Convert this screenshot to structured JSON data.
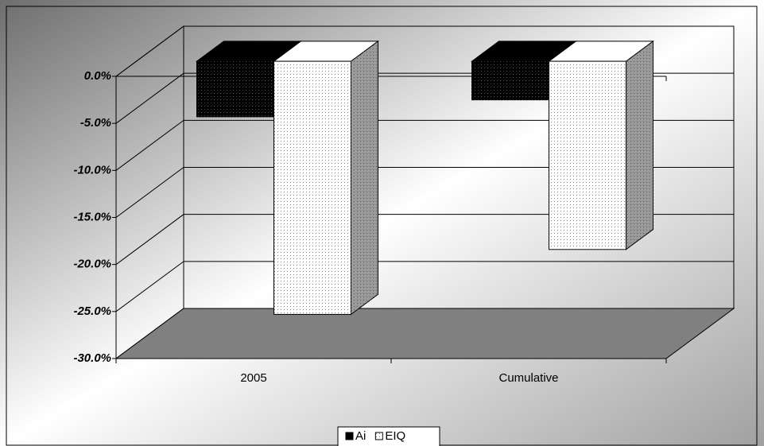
{
  "chart_data": {
    "type": "bar3d",
    "categories": [
      "2005",
      "Cumulative"
    ],
    "series": [
      {
        "name": "Ai",
        "color": "#000000",
        "values": [
          -5.9,
          -4.1
        ]
      },
      {
        "name": "EIQ",
        "color": "#ffffff",
        "values": [
          -26.9,
          -20.0
        ]
      }
    ],
    "ylim": [
      -30,
      0
    ],
    "yticks": [
      {
        "value": 0,
        "label": "0.0%"
      },
      {
        "value": -5,
        "label": "-5.0%"
      },
      {
        "value": -10,
        "label": "-10.0%"
      },
      {
        "value": -15,
        "label": "-15.0%"
      },
      {
        "value": -20,
        "label": "-20.0%"
      },
      {
        "value": -25,
        "label": "-25.0%"
      },
      {
        "value": -30,
        "label": "-30.0%"
      }
    ],
    "grid": true,
    "legend": "bottom"
  }
}
